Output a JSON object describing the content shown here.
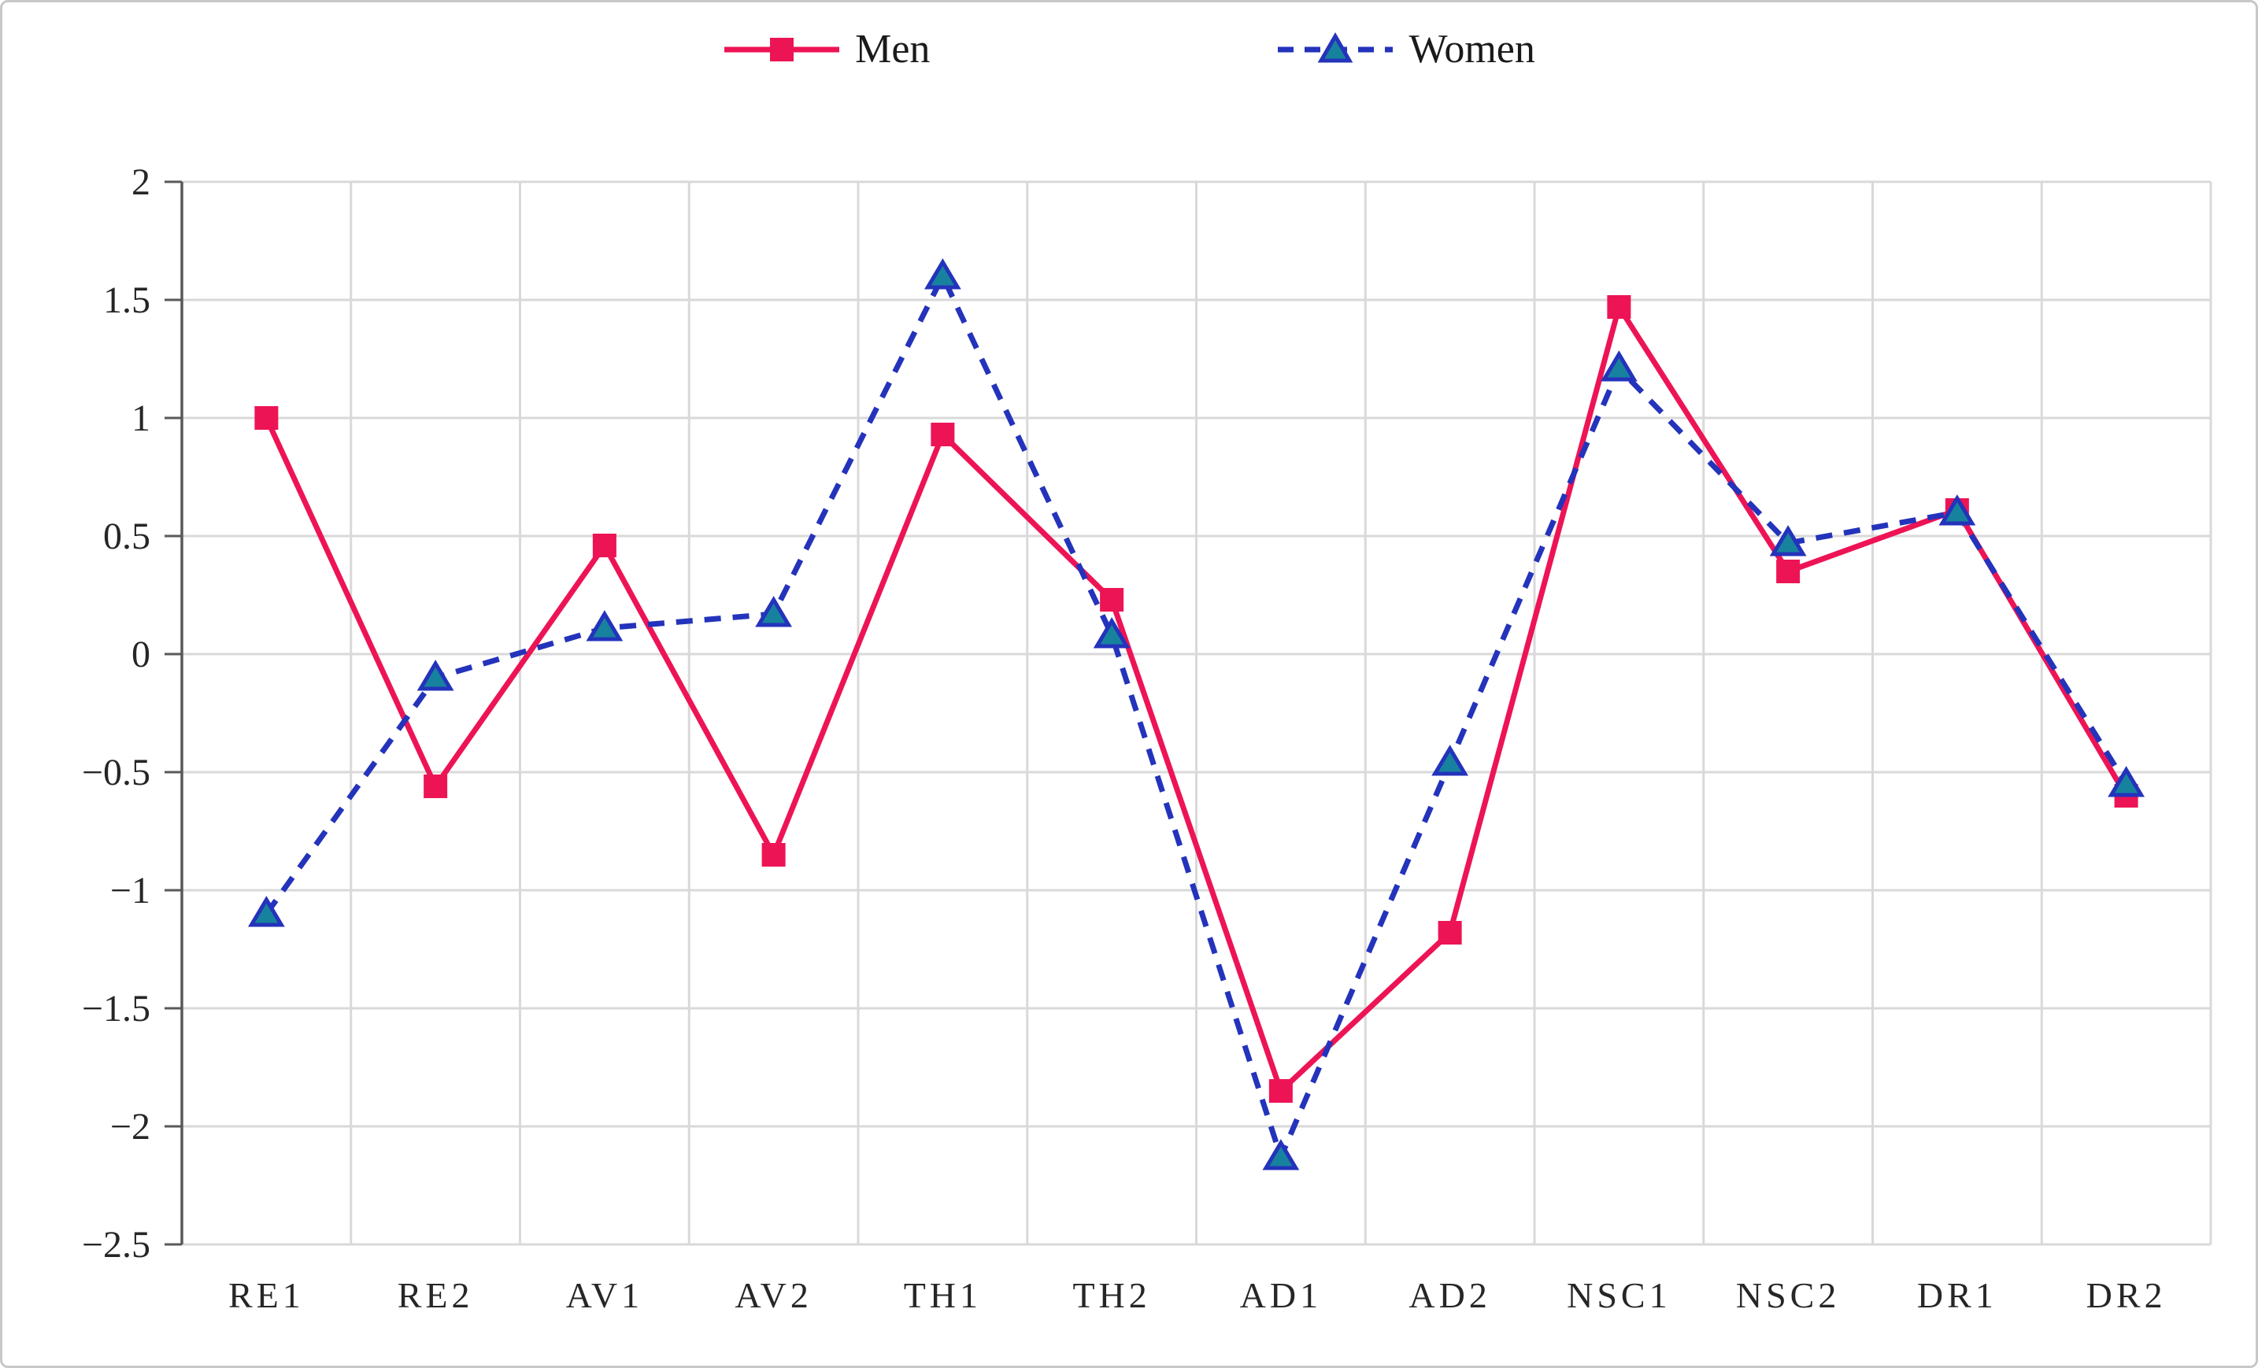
{
  "chart_data": {
    "type": "line",
    "title": "",
    "categories": [
      "RE1",
      "RE2",
      "AV1",
      "AV2",
      "TH1",
      "TH2",
      "AD1",
      "AD2",
      "NSC1",
      "NSC2",
      "DR1",
      "DR2"
    ],
    "series": [
      {
        "name": "Men",
        "color": "#ED1455",
        "line_style": "solid",
        "marker": "square",
        "values": [
          1.0,
          -0.56,
          0.46,
          -0.85,
          0.93,
          0.23,
          -1.85,
          -1.18,
          1.47,
          0.35,
          0.61,
          -0.6
        ]
      },
      {
        "name": "Women",
        "color": "#2433BB",
        "marker_fill": "#17829E",
        "line_style": "dashed",
        "marker": "triangle",
        "values": [
          -1.1,
          -0.1,
          0.11,
          0.17,
          1.6,
          0.08,
          -2.13,
          -0.46,
          1.21,
          0.47,
          0.6,
          -0.55
        ]
      }
    ],
    "ylim": [
      -2.5,
      2
    ],
    "ytick_step": 0.5,
    "ytick_labels_top_to_bottom": [
      "2",
      "1.5",
      "1",
      "0.5",
      "0",
      "−0.5",
      "−1",
      "−1.5",
      "−2",
      "−2.5"
    ],
    "grid": "both",
    "legend_position": "top",
    "xlabel": "",
    "ylabel": ""
  },
  "colors": {
    "grid": "#d9d9d9",
    "axis": "#595959",
    "tick_text": "#262626",
    "border": "#c8c8c8"
  }
}
